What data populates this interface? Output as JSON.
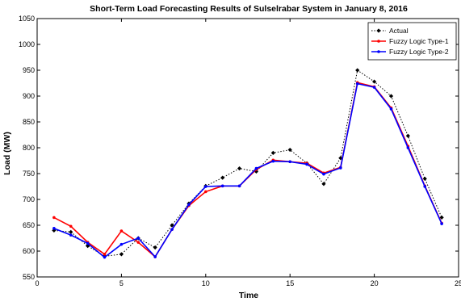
{
  "chart_data": {
    "type": "line",
    "title": "Short-Term Load Forecasting Results of Sulselrabar System in January 8, 2016",
    "xlabel": "Time",
    "ylabel": "Load (MW)",
    "xlim": [
      0,
      25
    ],
    "ylim": [
      550,
      1050
    ],
    "xticks": [
      0,
      5,
      10,
      15,
      20,
      25
    ],
    "yticks": [
      550,
      600,
      650,
      700,
      750,
      800,
      850,
      900,
      950,
      1000,
      1050
    ],
    "grid": false,
    "legend_position": "top-right",
    "x": [
      1,
      2,
      3,
      4,
      5,
      6,
      7,
      8,
      9,
      10,
      11,
      12,
      13,
      14,
      15,
      16,
      17,
      18,
      19,
      20,
      21,
      22,
      23,
      24
    ],
    "series": [
      {
        "name": "Actual",
        "color": "#000000",
        "line_style": "dotted",
        "marker": "diamond",
        "values": [
          640,
          637,
          610,
          590,
          594,
          625,
          607,
          650,
          692,
          726,
          742,
          760,
          754,
          790,
          796,
          770,
          730,
          780,
          950,
          928,
          900,
          823,
          740,
          665
        ]
      },
      {
        "name": "Fuzzy Logic Type-1",
        "color": "#ff0000",
        "line_style": "solid",
        "marker": "point",
        "values": [
          665,
          648,
          617,
          594,
          639,
          617,
          589,
          642,
          688,
          715,
          726,
          726,
          758,
          776,
          773,
          770,
          751,
          762,
          926,
          918,
          877,
          803,
          726,
          654
        ]
      },
      {
        "name": "Fuzzy Logic Type-2",
        "color": "#0000ff",
        "line_style": "solid",
        "marker": "point",
        "values": [
          644,
          631,
          615,
          588,
          613,
          625,
          589,
          642,
          690,
          725,
          726,
          726,
          760,
          774,
          773,
          768,
          749,
          761,
          924,
          917,
          875,
          800,
          725,
          653
        ]
      }
    ]
  }
}
